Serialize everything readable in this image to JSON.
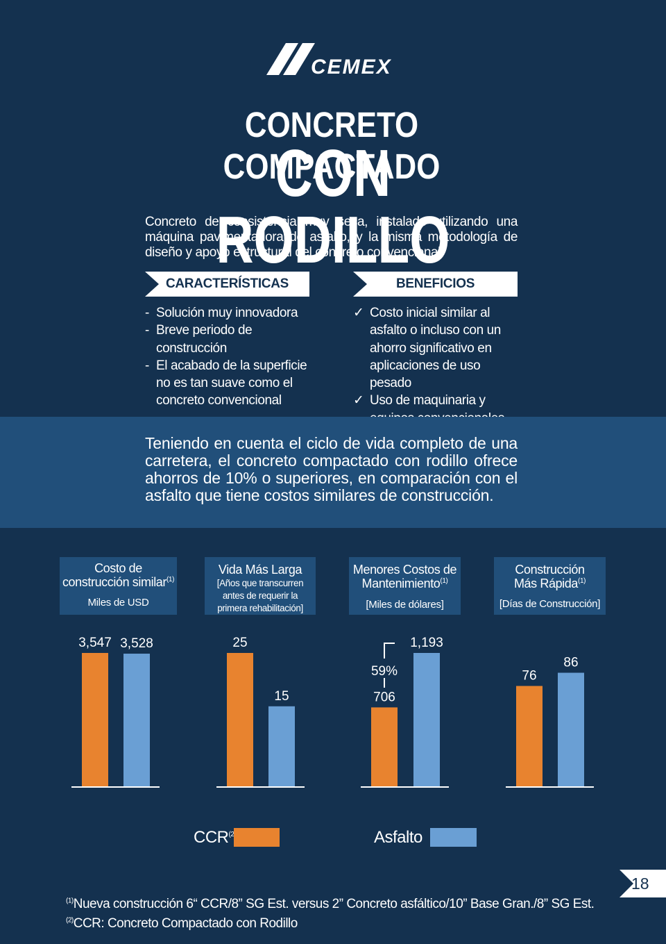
{
  "brand": {
    "logo_text": "CEMEX",
    "colors": {
      "background": "#14314f",
      "band": "#214f7a",
      "ccr": "#e8832f",
      "asfalto": "#6a9fd4"
    }
  },
  "title": {
    "line1": "CONCRETO COMPACTADO",
    "line2": "CON RODILLO"
  },
  "intro": "Concreto de consistencia muy seca, instalado utilizando una máquina pavimentadora de asfalto, y la misma metodología de diseño y apoyo estructural del concreto convencional.",
  "caracteristicas": {
    "label": "CARACTERÍSTICAS",
    "bullet": "-",
    "items": [
      {
        "lines": [
          "Solución muy innovadora"
        ]
      },
      {
        "lines": [
          "Breve periodo de",
          "construcción"
        ]
      },
      {
        "lines": [
          "El acabado de la superficie",
          "no es tan suave como el",
          "concreto convencional"
        ]
      }
    ]
  },
  "beneficios": {
    "label": "BENEFICIOS",
    "bullet": "✓",
    "items": [
      {
        "lines": [
          "Costo inicial similar al",
          "asfalto o incluso con un",
          "ahorro significativo en",
          "aplicaciones de uso pesado"
        ]
      },
      {
        "lines": [
          "Uso de maquinaria y",
          "equipos convencionales"
        ]
      }
    ]
  },
  "band_text": "Teniendo en cuenta el ciclo de vida completo de una carretera, el concreto compactado con rodillo ofrece ahorros de 10% o superiores, en comparación con el asfalto que tiene costos similares de construcción.",
  "chart_headers": [
    {
      "title1": "Costo de",
      "title2": "construcción similar",
      "sup": "(1)",
      "subtitle": "Miles de USD"
    },
    {
      "title1": "Vida Más Larga",
      "sub1": "[Años que transcurren",
      "sub2": "antes de requerir la",
      "sub3": "primera rehabilitación]"
    },
    {
      "title1": "Menores Costos de",
      "title2": "Mantenimiento",
      "sup": "(1)",
      "subtitle": "[Miles de dólares]"
    },
    {
      "title1": "Construcción",
      "title2": "Más Rápida",
      "sup": "(1)",
      "subtitle": "[Días de Construcción]"
    }
  ],
  "chart_data": [
    {
      "type": "bar",
      "title": "Costo de construcción similar",
      "ylabel": "Miles de USD",
      "categories": [
        "CCR",
        "Asfalto"
      ],
      "values": [
        3547,
        3528
      ],
      "labels": [
        "3,547",
        "3,528"
      ],
      "ylim": [
        0,
        3547
      ]
    },
    {
      "type": "bar",
      "title": "Vida Más Larga",
      "ylabel": "[Años que transcurren antes de requerir la primera rehabilitación]",
      "categories": [
        "CCR",
        "Asfalto"
      ],
      "values": [
        25,
        15
      ],
      "labels": [
        "25",
        "15"
      ],
      "ylim": [
        0,
        25
      ]
    },
    {
      "type": "bar",
      "title": "Menores Costos de Mantenimiento",
      "ylabel": "[Miles de dólares]",
      "categories": [
        "CCR",
        "Asfalto"
      ],
      "values": [
        706,
        1193
      ],
      "labels": [
        "706",
        "1,193"
      ],
      "annotation": "59%",
      "ylim": [
        0,
        1193
      ]
    },
    {
      "type": "bar",
      "title": "Construcción Más Rápida",
      "ylabel": "[Días de Construcción]",
      "categories": [
        "CCR",
        "Asfalto"
      ],
      "values": [
        76,
        86
      ],
      "labels": [
        "76",
        "86"
      ],
      "ylim": [
        0,
        101
      ]
    }
  ],
  "legend": [
    {
      "name": "CCR",
      "sup": "(2)",
      "color": "#e8832f"
    },
    {
      "name": "Asfalto",
      "color": "#6a9fd4"
    }
  ],
  "page_number": "18",
  "footnotes": [
    {
      "mark": "(1)",
      "text": "Nueva construcción 6“ CCR/8” SG Est. versus 2” Concreto asfáltico/10” Base Gran./8” SG Est."
    },
    {
      "mark": "(2)",
      "text": "CCR: Concreto Compactado con Rodillo"
    }
  ]
}
